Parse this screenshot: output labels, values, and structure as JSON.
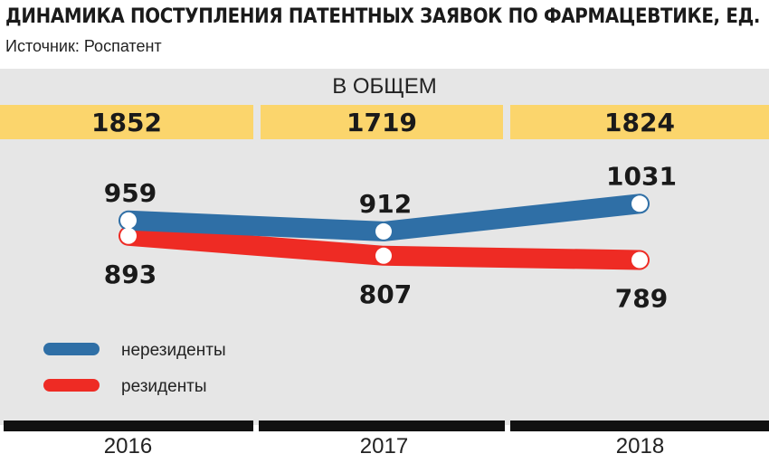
{
  "title": "ДИНАМИКА ПОСТУПЛЕНИЯ ПАТЕНТНЫХ ЗАЯВОК ПО ФАРМАЦЕВТИКЕ, ЕД.",
  "source": "Источник: Роспатент",
  "chart_data": {
    "type": "line",
    "title": "ДИНАМИКА ПОСТУПЛЕНИЯ ПАТЕНТНЫХ ЗАЯВОК ПО ФАРМАЦЕВТИКЕ, ЕД.",
    "categories": [
      "2016",
      "2017",
      "2018"
    ],
    "total_label": "В ОБЩЕМ",
    "totals": [
      "1852",
      "1719",
      "1824"
    ],
    "series": [
      {
        "name": "нерезиденты",
        "values": [
          959,
          912,
          1031
        ],
        "color": "#2f6fa6"
      },
      {
        "name": "резиденты",
        "values": [
          893,
          807,
          789
        ],
        "color": "#ee2b24"
      }
    ],
    "legend": "bottom-left",
    "grid": false
  }
}
